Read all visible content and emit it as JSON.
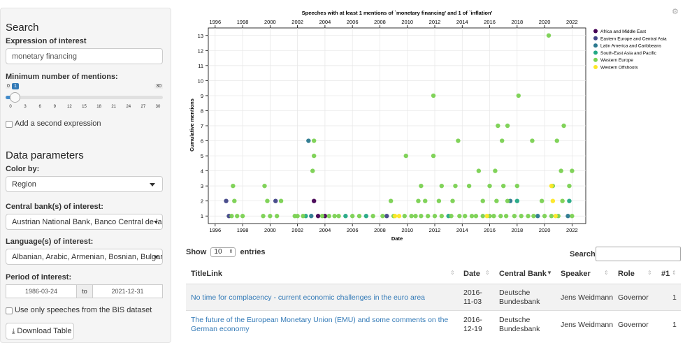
{
  "sidebar": {
    "search_heading": "Search",
    "expression_label": "Expression of interest",
    "expression_value": "monetary financing",
    "min_mentions_label": "Minimum number of mentions:",
    "slider": {
      "min": 0,
      "max": 30,
      "value": 1,
      "min_label": "0",
      "max_label": "30",
      "value_label": "1",
      "ticks": [
        "0",
        "3",
        "6",
        "9",
        "12",
        "15",
        "18",
        "21",
        "24",
        "27",
        "30"
      ]
    },
    "second_expression_label": "Add a second expression",
    "data_params_heading": "Data parameters",
    "color_by_label": "Color by:",
    "color_by_value": "Region",
    "central_bank_label": "Central bank(s) of interest:",
    "central_bank_value": "Austrian National Bank, Banco Central de la Re",
    "languages_label": "Language(s) of interest:",
    "languages_value": "Albanian, Arabic, Armenian, Bosnian, Bulgarian",
    "period_label": "Period of interest:",
    "period_from": "1986-03-24",
    "period_to_label": "to",
    "period_to": "2021-12-31",
    "bis_only_label": "Use only speeches from the BIS dataset",
    "download_label": "Download Table"
  },
  "colors": {
    "africa": "#440154",
    "eastern_europe": "#414487",
    "latin_america": "#2a788e",
    "se_asia": "#22a884",
    "western_europe": "#7ad151",
    "western_offshoots": "#fde725",
    "link": "#337ab7"
  },
  "chart_data": {
    "type": "scatter",
    "title": "Speeches with at least 1 mentions of `monetary financing' and 1 of `inflation'",
    "xlabel": "Date",
    "ylabel": "Cumulative mentions",
    "xlim": [
      1995.5,
      2023
    ],
    "ylim": [
      0.5,
      13.5
    ],
    "x_ticks": [
      "1996",
      "1998",
      "2000",
      "2002",
      "2004",
      "2006",
      "2008",
      "2010",
      "2012",
      "2014",
      "2016",
      "2018",
      "2020",
      "2022"
    ],
    "y_ticks": [
      "1",
      "2",
      "3",
      "4",
      "5",
      "6",
      "7",
      "8",
      "9",
      "10",
      "11",
      "12",
      "13"
    ],
    "grid": true,
    "legend_position": "top-right",
    "series": [
      {
        "name": "Africa and Middle East",
        "color_key": "africa",
        "points": [
          [
            2003.2,
            2
          ],
          [
            2003.5,
            1
          ],
          [
            2004.0,
            1
          ]
        ]
      },
      {
        "name": "Eastern Europe and Central Asia",
        "color_key": "eastern_europe",
        "points": [
          [
            1996.8,
            2
          ],
          [
            2000.4,
            2
          ],
          [
            1997.0,
            1
          ],
          [
            2008.5,
            1
          ]
        ]
      },
      {
        "name": "Latin America and Caribbeans",
        "color_key": "latin_america",
        "points": [
          [
            2002.8,
            6
          ],
          [
            2003.0,
            1
          ],
          [
            2017.5,
            2
          ],
          [
            2019.5,
            1
          ],
          [
            2021.7,
            1
          ]
        ]
      },
      {
        "name": "South-East Asia and Pacific",
        "color_key": "se_asia",
        "points": [
          [
            2002.6,
            1
          ],
          [
            2005.5,
            1
          ],
          [
            2007.0,
            1
          ],
          [
            2013.0,
            1
          ],
          [
            2018.0,
            2
          ],
          [
            2021.8,
            2
          ]
        ]
      },
      {
        "name": "Western Europe",
        "color_key": "western_europe",
        "points": [
          [
            2020.3,
            13
          ],
          [
            2011.9,
            9
          ],
          [
            2018.1,
            9
          ],
          [
            2016.6,
            7
          ],
          [
            2017.3,
            7
          ],
          [
            2021.4,
            7
          ],
          [
            2003.2,
            6
          ],
          [
            2013.7,
            6
          ],
          [
            2016.9,
            6
          ],
          [
            2019.1,
            6
          ],
          [
            2020.9,
            6
          ],
          [
            2003.2,
            5
          ],
          [
            2009.9,
            5
          ],
          [
            2011.9,
            5
          ],
          [
            2003.1,
            4
          ],
          [
            2015.2,
            4
          ],
          [
            2016.4,
            4
          ],
          [
            2021.2,
            4
          ],
          [
            2022.0,
            4
          ],
          [
            1997.3,
            3
          ],
          [
            1999.6,
            3
          ],
          [
            2011.0,
            3
          ],
          [
            2012.5,
            3
          ],
          [
            2013.5,
            3
          ],
          [
            2014.5,
            3
          ],
          [
            2016.0,
            3
          ],
          [
            2017.0,
            3
          ],
          [
            2018.0,
            3
          ],
          [
            2020.6,
            3
          ],
          [
            2021.8,
            3
          ],
          [
            1997.4,
            2
          ],
          [
            1999.8,
            2
          ],
          [
            2000.8,
            2
          ],
          [
            2008.8,
            2
          ],
          [
            2010.8,
            2
          ],
          [
            2011.3,
            2
          ],
          [
            2012.3,
            2
          ],
          [
            2013.3,
            2
          ],
          [
            2015.5,
            2
          ],
          [
            2016.5,
            2
          ],
          [
            2017.3,
            2
          ],
          [
            2019.8,
            2
          ],
          [
            2021.3,
            2
          ],
          [
            1997.2,
            1
          ],
          [
            1997.6,
            1
          ],
          [
            1998.0,
            1
          ],
          [
            1999.5,
            1
          ],
          [
            2000.0,
            1
          ],
          [
            2000.5,
            1
          ],
          [
            2001.8,
            1
          ],
          [
            2002.0,
            1
          ],
          [
            2002.4,
            1
          ],
          [
            2003.8,
            1
          ],
          [
            2004.3,
            1
          ],
          [
            2004.7,
            1
          ],
          [
            2005.0,
            1
          ],
          [
            2006.0,
            1
          ],
          [
            2006.5,
            1
          ],
          [
            2007.5,
            1
          ],
          [
            2008.2,
            1
          ],
          [
            2009.0,
            1
          ],
          [
            2009.8,
            1
          ],
          [
            2010.3,
            1
          ],
          [
            2010.6,
            1
          ],
          [
            2011.0,
            1
          ],
          [
            2011.5,
            1
          ],
          [
            2012.0,
            1
          ],
          [
            2012.5,
            1
          ],
          [
            2013.2,
            1
          ],
          [
            2013.8,
            1
          ],
          [
            2014.2,
            1
          ],
          [
            2014.7,
            1
          ],
          [
            2015.0,
            1
          ],
          [
            2015.5,
            1
          ],
          [
            2016.0,
            1
          ],
          [
            2016.3,
            1
          ],
          [
            2016.8,
            1
          ],
          [
            2017.2,
            1
          ],
          [
            2017.8,
            1
          ],
          [
            2018.3,
            1
          ],
          [
            2018.8,
            1
          ],
          [
            2019.2,
            1
          ],
          [
            2020.0,
            1
          ],
          [
            2020.5,
            1
          ],
          [
            2021.0,
            1
          ],
          [
            2022.0,
            1
          ]
        ]
      },
      {
        "name": "Western Offshoots",
        "color_key": "western_offshoots",
        "points": [
          [
            2020.5,
            3
          ],
          [
            2020.6,
            2
          ],
          [
            2009.1,
            1
          ],
          [
            2009.4,
            1
          ],
          [
            2015.8,
            1
          ],
          [
            2020.8,
            1
          ]
        ]
      }
    ]
  },
  "table": {
    "show_label": "Show",
    "entries_value": "10",
    "entries_label": "entries",
    "search_label": "Search:",
    "columns": [
      "TitleLink",
      "Date",
      "Central Bank",
      "Speaker",
      "Role",
      "#1"
    ],
    "rows": [
      {
        "title": "No time for complacency - current economic challenges in the euro area",
        "date": "2016-11-03",
        "bank": "Deutsche Bundesbank",
        "speaker": "Jens Weidmann",
        "role": "Governor",
        "count": "1"
      },
      {
        "title": "The future of the European Monetary Union (EMU) and some comments on the German economy",
        "date": "2016-12-19",
        "bank": "Deutsche Bundesbank",
        "speaker": "Jens Weidmann",
        "role": "Governor",
        "count": "1"
      }
    ]
  }
}
